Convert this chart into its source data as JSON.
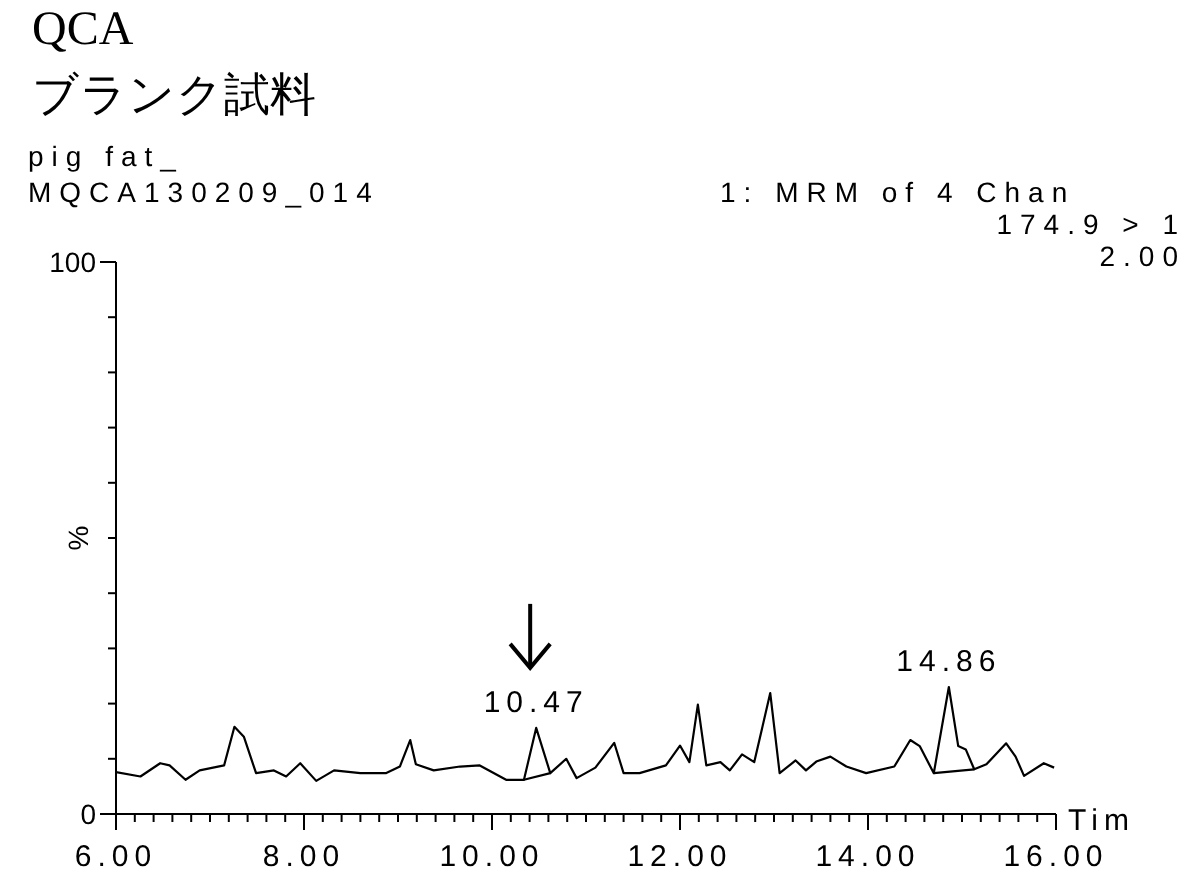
{
  "chart_data": {
    "type": "line",
    "title": "QCA",
    "subtitle": "ブランク試料",
    "xlabel": "Tim",
    "ylabel": "%",
    "annotations": [
      "pig fat_",
      "MQCA130209_014",
      "1: MRM of 4 Chan",
      "174.9 > 1",
      "2.00",
      {
        "text": "10.47",
        "x": 10.47,
        "y": 15.6
      },
      {
        "text": "14.86",
        "x": 14.86,
        "y": 23
      }
    ],
    "series": [
      {
        "color": "#000000",
        "x": [
          6.0,
          6.26,
          6.47,
          6.57,
          6.74,
          6.89,
          7.15,
          7.26,
          7.36,
          7.49,
          7.68,
          7.81,
          7.96,
          8.13,
          8.32,
          8.6,
          8.87,
          9.02,
          9.13,
          9.19,
          9.38,
          9.66,
          9.87,
          10.15,
          10.34,
          10.47,
          10.62,
          10.79,
          10.9,
          11.1,
          11.3,
          11.4,
          11.57,
          11.85,
          12.0,
          12.1,
          12.19,
          12.28,
          12.43,
          12.53,
          12.66,
          12.79,
          12.96,
          13.06,
          13.23,
          13.34,
          13.45,
          13.6,
          13.77,
          13.98,
          14.28,
          14.45,
          14.55,
          14.7,
          14.86,
          14.96,
          15.04,
          15.13,
          15.26,
          15.47,
          15.57,
          15.66,
          15.87,
          15.98
        ],
        "values": [
          7.6,
          6.8,
          9.2,
          8.8,
          6.2,
          7.9,
          8.8,
          15.8,
          14,
          7.4,
          7.9,
          6.8,
          9.2,
          6.0,
          7.9,
          7.4,
          7.4,
          8.6,
          13.4,
          9,
          7.9,
          8.6,
          8.8,
          6.2,
          6.2,
          15.6,
          7.4,
          10,
          6.5,
          8.4,
          12.9,
          7.4,
          7.4,
          8.8,
          12.4,
          9.4,
          19.8,
          8.8,
          9.4,
          7.9,
          10.8,
          9.4,
          21.9,
          7.4,
          9.7,
          7.9,
          9.5,
          10.4,
          8.6,
          7.4,
          8.6,
          13.4,
          12.3,
          7.4,
          23,
          12.3,
          11.7,
          8.1,
          9,
          12.8,
          10.4,
          6.9,
          9.2,
          8.4
        ]
      },
      {
        "color": "#000000",
        "x": [
          10.34,
          10.62
        ],
        "values": [
          6.2,
          7.4
        ]
      },
      {
        "color": "#000000",
        "x": [
          14.7,
          15.13
        ],
        "values": [
          7.4,
          8.1
        ]
      }
    ],
    "xlim": [
      6,
      16
    ],
    "xticks": [
      {
        "value": 6,
        "label": "6.00"
      },
      {
        "value": 6.2,
        "label": null
      },
      {
        "value": 6.4,
        "label": null
      },
      {
        "value": 6.6,
        "label": null
      },
      {
        "value": 6.8,
        "label": null
      },
      {
        "value": 7,
        "label": null
      },
      {
        "value": 7.2,
        "label": null
      },
      {
        "value": 7.4,
        "label": null
      },
      {
        "value": 7.6,
        "label": null
      },
      {
        "value": 7.8,
        "label": null
      },
      {
        "value": 8,
        "label": "8.00"
      },
      {
        "value": 8.2,
        "label": null
      },
      {
        "value": 8.4,
        "label": null
      },
      {
        "value": 8.6,
        "label": null
      },
      {
        "value": 8.8,
        "label": null
      },
      {
        "value": 9,
        "label": null
      },
      {
        "value": 9.2,
        "label": null
      },
      {
        "value": 9.4,
        "label": null
      },
      {
        "value": 9.6,
        "label": null
      },
      {
        "value": 9.8,
        "label": null
      },
      {
        "value": 10,
        "label": "10.00"
      },
      {
        "value": 10.2,
        "label": null
      },
      {
        "value": 10.4,
        "label": null
      },
      {
        "value": 10.6,
        "label": null
      },
      {
        "value": 10.8,
        "label": null
      },
      {
        "value": 11,
        "label": null
      },
      {
        "value": 11.2,
        "label": null
      },
      {
        "value": 11.4,
        "label": null
      },
      {
        "value": 11.6,
        "label": null
      },
      {
        "value": 11.8,
        "label": null
      },
      {
        "value": 12,
        "label": "12.00"
      },
      {
        "value": 12.2,
        "label": null
      },
      {
        "value": 12.4,
        "label": null
      },
      {
        "value": 12.6,
        "label": null
      },
      {
        "value": 12.8,
        "label": null
      },
      {
        "value": 13,
        "label": null
      },
      {
        "value": 13.2,
        "label": null
      },
      {
        "value": 13.4,
        "label": null
      },
      {
        "value": 13.6,
        "label": null
      },
      {
        "value": 13.8,
        "label": null
      },
      {
        "value": 14,
        "label": "14.00"
      },
      {
        "value": 14.2,
        "label": null
      },
      {
        "value": 14.4,
        "label": null
      },
      {
        "value": 14.6,
        "label": null
      },
      {
        "value": 14.8,
        "label": null
      },
      {
        "value": 15,
        "label": null
      },
      {
        "value": 15.2,
        "label": null
      },
      {
        "value": 15.4,
        "label": null
      },
      {
        "value": 15.6,
        "label": null
      },
      {
        "value": 15.8,
        "label": null
      },
      {
        "value": 16,
        "label": "16.00"
      }
    ],
    "ylim": [
      0,
      100
    ],
    "yticks": [
      0,
      {
        "value": 10,
        "label": null
      },
      {
        "value": 20,
        "label": null
      },
      {
        "value": 30,
        "label": null
      },
      {
        "value": 40,
        "label": null
      },
      {
        "value": 50,
        "label": null
      },
      {
        "value": 60,
        "label": null
      },
      {
        "value": 70,
        "label": null
      },
      {
        "value": 80,
        "label": null
      },
      {
        "value": 90,
        "label": null
      },
      100
    ],
    "marker": "none",
    "line_style": "solid"
  }
}
